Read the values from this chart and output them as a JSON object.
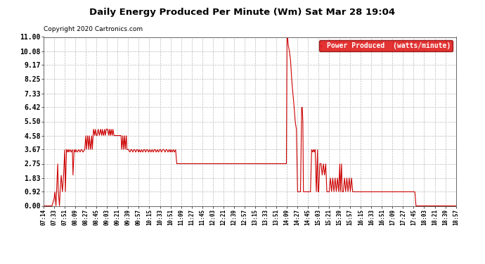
{
  "title": "Daily Energy Produced Per Minute (Wm) Sat Mar 28 19:04",
  "copyright": "Copyright 2020 Cartronics.com",
  "legend_label": "Power Produced  (watts/minute)",
  "legend_bg": "#dd0000",
  "legend_text_color": "#ffffff",
  "line_color": "#cc0000",
  "background_color": "#ffffff",
  "grid_color": "#bbbbbb",
  "yticks": [
    0.0,
    0.92,
    1.83,
    2.75,
    3.67,
    4.58,
    5.5,
    6.42,
    7.33,
    8.25,
    9.17,
    10.08,
    11.0
  ],
  "ylim": [
    0.0,
    11.0
  ],
  "xtick_labels": [
    "07:14",
    "07:33",
    "07:51",
    "08:09",
    "08:27",
    "08:45",
    "09:03",
    "09:21",
    "09:39",
    "09:57",
    "10:15",
    "10:33",
    "10:51",
    "11:09",
    "11:27",
    "11:45",
    "12:03",
    "12:21",
    "12:39",
    "12:57",
    "13:15",
    "13:33",
    "13:51",
    "14:09",
    "14:27",
    "14:45",
    "15:03",
    "15:21",
    "15:39",
    "15:57",
    "16:15",
    "16:33",
    "16:51",
    "17:09",
    "17:27",
    "17:45",
    "18:03",
    "18:21",
    "18:39",
    "18:57"
  ],
  "data": [
    [
      0,
      0.0
    ],
    [
      5,
      0.0
    ],
    [
      10,
      0.0
    ],
    [
      14,
      0.0
    ],
    [
      15,
      0.1
    ],
    [
      18,
      0.5
    ],
    [
      19,
      0.92
    ],
    [
      21,
      0.0
    ],
    [
      22,
      0.92
    ],
    [
      24,
      2.75
    ],
    [
      25,
      0.92
    ],
    [
      27,
      0.0
    ],
    [
      28,
      0.92
    ],
    [
      30,
      2.0
    ],
    [
      32,
      0.92
    ],
    [
      34,
      2.0
    ],
    [
      36,
      3.67
    ],
    [
      37,
      0.92
    ],
    [
      39,
      3.67
    ],
    [
      40,
      3.5
    ],
    [
      42,
      3.67
    ],
    [
      43,
      3.5
    ],
    [
      45,
      3.67
    ],
    [
      47,
      3.5
    ],
    [
      49,
      3.67
    ],
    [
      50,
      2.0
    ],
    [
      52,
      3.67
    ],
    [
      54,
      3.5
    ],
    [
      55,
      3.67
    ],
    [
      57,
      3.5
    ],
    [
      60,
      3.67
    ],
    [
      62,
      3.5
    ],
    [
      64,
      3.67
    ],
    [
      65,
      3.67
    ],
    [
      67,
      3.5
    ],
    [
      70,
      3.67
    ],
    [
      72,
      4.58
    ],
    [
      73,
      3.67
    ],
    [
      75,
      4.58
    ],
    [
      77,
      3.67
    ],
    [
      78,
      4.58
    ],
    [
      80,
      3.67
    ],
    [
      82,
      4.58
    ],
    [
      83,
      3.67
    ],
    [
      85,
      5.0
    ],
    [
      87,
      4.58
    ],
    [
      88,
      5.0
    ],
    [
      90,
      4.58
    ],
    [
      91,
      4.58
    ],
    [
      93,
      5.0
    ],
    [
      95,
      4.58
    ],
    [
      97,
      5.0
    ],
    [
      99,
      4.58
    ],
    [
      100,
      5.0
    ],
    [
      102,
      4.58
    ],
    [
      104,
      5.0
    ],
    [
      105,
      4.58
    ],
    [
      107,
      5.0
    ],
    [
      109,
      5.0
    ],
    [
      111,
      4.58
    ],
    [
      112,
      5.0
    ],
    [
      114,
      4.58
    ],
    [
      115,
      5.0
    ],
    [
      117,
      4.58
    ],
    [
      118,
      5.0
    ],
    [
      120,
      4.58
    ],
    [
      121,
      4.58
    ],
    [
      123,
      4.58
    ],
    [
      124,
      4.58
    ],
    [
      125,
      4.58
    ],
    [
      127,
      4.58
    ],
    [
      129,
      4.58
    ],
    [
      130,
      4.58
    ],
    [
      132,
      4.58
    ],
    [
      133,
      3.67
    ],
    [
      135,
      4.58
    ],
    [
      136,
      3.67
    ],
    [
      138,
      4.58
    ],
    [
      139,
      3.67
    ],
    [
      141,
      4.58
    ],
    [
      142,
      3.67
    ],
    [
      144,
      3.67
    ],
    [
      145,
      3.67
    ],
    [
      147,
      3.5
    ],
    [
      149,
      3.67
    ],
    [
      150,
      3.67
    ],
    [
      152,
      3.5
    ],
    [
      154,
      3.67
    ],
    [
      155,
      3.67
    ],
    [
      157,
      3.5
    ],
    [
      159,
      3.67
    ],
    [
      160,
      3.67
    ],
    [
      162,
      3.5
    ],
    [
      163,
      3.67
    ],
    [
      165,
      3.5
    ],
    [
      167,
      3.67
    ],
    [
      169,
      3.5
    ],
    [
      171,
      3.67
    ],
    [
      172,
      3.67
    ],
    [
      174,
      3.5
    ],
    [
      176,
      3.67
    ],
    [
      177,
      3.67
    ],
    [
      179,
      3.5
    ],
    [
      181,
      3.67
    ],
    [
      183,
      3.5
    ],
    [
      185,
      3.67
    ],
    [
      187,
      3.5
    ],
    [
      189,
      3.67
    ],
    [
      190,
      3.67
    ],
    [
      192,
      3.5
    ],
    [
      194,
      3.67
    ],
    [
      196,
      3.5
    ],
    [
      198,
      3.67
    ],
    [
      199,
      3.67
    ],
    [
      201,
      3.5
    ],
    [
      203,
      3.67
    ],
    [
      205,
      3.67
    ],
    [
      207,
      3.5
    ],
    [
      209,
      3.67
    ],
    [
      210,
      3.67
    ],
    [
      212,
      3.5
    ],
    [
      214,
      3.67
    ],
    [
      216,
      3.5
    ],
    [
      217,
      3.67
    ],
    [
      219,
      3.5
    ],
    [
      221,
      3.67
    ],
    [
      223,
      3.5
    ],
    [
      225,
      3.67
    ],
    [
      227,
      2.75
    ],
    [
      228,
      2.75
    ],
    [
      229,
      2.75
    ],
    [
      230,
      2.75
    ],
    [
      232,
      2.75
    ],
    [
      234,
      2.75
    ],
    [
      235,
      2.75
    ],
    [
      237,
      2.75
    ],
    [
      239,
      2.75
    ],
    [
      240,
      2.75
    ],
    [
      242,
      2.75
    ],
    [
      244,
      2.75
    ],
    [
      246,
      2.75
    ],
    [
      248,
      2.75
    ],
    [
      249,
      2.75
    ],
    [
      250,
      2.75
    ],
    [
      252,
      2.75
    ],
    [
      253,
      2.75
    ],
    [
      255,
      2.75
    ],
    [
      257,
      2.75
    ],
    [
      258,
      2.75
    ],
    [
      260,
      2.75
    ],
    [
      262,
      2.75
    ],
    [
      263,
      2.75
    ],
    [
      265,
      2.75
    ],
    [
      267,
      2.75
    ],
    [
      268,
      2.75
    ],
    [
      270,
      2.75
    ],
    [
      271,
      2.75
    ],
    [
      273,
      2.75
    ],
    [
      275,
      2.75
    ],
    [
      277,
      2.75
    ],
    [
      279,
      2.75
    ],
    [
      280,
      2.75
    ],
    [
      282,
      2.75
    ],
    [
      284,
      2.75
    ],
    [
      285,
      2.75
    ],
    [
      287,
      2.75
    ],
    [
      289,
      2.75
    ],
    [
      291,
      2.75
    ],
    [
      293,
      2.75
    ],
    [
      295,
      2.75
    ],
    [
      297,
      2.75
    ],
    [
      299,
      2.75
    ],
    [
      300,
      2.75
    ],
    [
      302,
      2.75
    ],
    [
      304,
      2.75
    ],
    [
      305,
      2.75
    ],
    [
      307,
      2.75
    ],
    [
      309,
      2.75
    ],
    [
      311,
      2.75
    ],
    [
      312,
      2.75
    ],
    [
      314,
      2.75
    ],
    [
      316,
      2.75
    ],
    [
      317,
      2.75
    ],
    [
      319,
      2.75
    ],
    [
      320,
      2.75
    ],
    [
      322,
      2.75
    ],
    [
      324,
      2.75
    ],
    [
      325,
      2.75
    ],
    [
      327,
      2.75
    ],
    [
      329,
      2.75
    ],
    [
      330,
      2.75
    ],
    [
      332,
      2.75
    ],
    [
      334,
      2.75
    ],
    [
      335,
      2.75
    ],
    [
      337,
      2.75
    ],
    [
      339,
      2.75
    ],
    [
      340,
      2.75
    ],
    [
      342,
      2.75
    ],
    [
      343,
      2.75
    ],
    [
      345,
      2.75
    ],
    [
      347,
      2.75
    ],
    [
      348,
      2.75
    ],
    [
      350,
      2.75
    ],
    [
      352,
      2.75
    ],
    [
      354,
      2.75
    ],
    [
      355,
      2.75
    ],
    [
      357,
      2.75
    ],
    [
      359,
      2.75
    ],
    [
      360,
      2.75
    ],
    [
      362,
      2.75
    ],
    [
      364,
      2.75
    ],
    [
      365,
      2.75
    ],
    [
      367,
      2.75
    ],
    [
      369,
      2.75
    ],
    [
      370,
      2.75
    ],
    [
      372,
      2.75
    ],
    [
      374,
      2.75
    ],
    [
      375,
      2.75
    ],
    [
      377,
      2.75
    ],
    [
      379,
      2.75
    ],
    [
      381,
      2.75
    ],
    [
      383,
      2.75
    ],
    [
      385,
      2.75
    ],
    [
      387,
      2.75
    ],
    [
      388,
      2.75
    ],
    [
      390,
      2.75
    ],
    [
      392,
      2.75
    ],
    [
      393,
      2.75
    ],
    [
      395,
      2.75
    ],
    [
      397,
      2.75
    ],
    [
      399,
      2.75
    ],
    [
      401,
      2.75
    ],
    [
      403,
      2.75
    ],
    [
      404,
      2.75
    ],
    [
      406,
      2.75
    ],
    [
      408,
      2.75
    ],
    [
      410,
      2.75
    ],
    [
      411,
      2.75
    ],
    [
      413,
      2.75
    ],
    [
      414,
      2.75
    ],
    [
      415,
      11.0
    ],
    [
      416,
      11.0
    ],
    [
      417,
      10.5
    ],
    [
      419,
      10.08
    ],
    [
      421,
      9.5
    ],
    [
      423,
      8.25
    ],
    [
      425,
      7.33
    ],
    [
      427,
      6.5
    ],
    [
      429,
      5.5
    ],
    [
      431,
      5.0
    ],
    [
      433,
      0.92
    ],
    [
      434,
      0.92
    ],
    [
      436,
      0.92
    ],
    [
      438,
      0.92
    ],
    [
      440,
      6.42
    ],
    [
      441,
      6.42
    ],
    [
      442,
      5.5
    ],
    [
      443,
      0.92
    ],
    [
      444,
      0.92
    ],
    [
      445,
      0.92
    ],
    [
      447,
      0.92
    ],
    [
      449,
      0.92
    ],
    [
      451,
      0.92
    ],
    [
      453,
      0.92
    ],
    [
      455,
      0.92
    ],
    [
      457,
      3.67
    ],
    [
      459,
      3.5
    ],
    [
      460,
      3.67
    ],
    [
      462,
      3.5
    ],
    [
      463,
      3.67
    ],
    [
      465,
      0.92
    ],
    [
      467,
      3.67
    ],
    [
      468,
      0.92
    ],
    [
      469,
      0.92
    ],
    [
      471,
      2.75
    ],
    [
      473,
      2.75
    ],
    [
      475,
      2.0
    ],
    [
      477,
      2.75
    ],
    [
      479,
      2.0
    ],
    [
      481,
      2.75
    ],
    [
      483,
      0.92
    ],
    [
      485,
      0.92
    ],
    [
      487,
      0.92
    ],
    [
      489,
      1.83
    ],
    [
      491,
      0.92
    ],
    [
      493,
      1.83
    ],
    [
      495,
      0.92
    ],
    [
      497,
      1.83
    ],
    [
      499,
      0.92
    ],
    [
      501,
      1.83
    ],
    [
      503,
      0.92
    ],
    [
      505,
      2.75
    ],
    [
      506,
      0.92
    ],
    [
      508,
      2.75
    ],
    [
      509,
      0.92
    ],
    [
      511,
      0.92
    ],
    [
      513,
      1.83
    ],
    [
      515,
      0.92
    ],
    [
      517,
      1.83
    ],
    [
      519,
      0.92
    ],
    [
      521,
      1.83
    ],
    [
      523,
      0.92
    ],
    [
      525,
      1.83
    ],
    [
      527,
      0.92
    ],
    [
      528,
      0.92
    ],
    [
      529,
      0.92
    ],
    [
      531,
      0.92
    ],
    [
      533,
      0.92
    ],
    [
      535,
      0.92
    ],
    [
      537,
      0.92
    ],
    [
      539,
      0.92
    ],
    [
      541,
      0.92
    ],
    [
      543,
      0.92
    ],
    [
      545,
      0.92
    ],
    [
      547,
      0.92
    ],
    [
      549,
      0.92
    ],
    [
      551,
      0.92
    ],
    [
      553,
      0.92
    ],
    [
      555,
      0.92
    ],
    [
      557,
      0.92
    ],
    [
      559,
      0.92
    ],
    [
      561,
      0.92
    ],
    [
      563,
      0.92
    ],
    [
      565,
      0.92
    ],
    [
      567,
      0.92
    ],
    [
      569,
      0.92
    ],
    [
      571,
      0.92
    ],
    [
      573,
      0.92
    ],
    [
      575,
      0.92
    ],
    [
      577,
      0.92
    ],
    [
      579,
      0.92
    ],
    [
      581,
      0.92
    ],
    [
      583,
      0.92
    ],
    [
      585,
      0.92
    ],
    [
      587,
      0.92
    ],
    [
      589,
      0.92
    ],
    [
      591,
      0.92
    ],
    [
      593,
      0.92
    ],
    [
      595,
      0.92
    ],
    [
      597,
      0.92
    ],
    [
      599,
      0.92
    ],
    [
      601,
      0.92
    ],
    [
      603,
      0.92
    ],
    [
      605,
      0.92
    ],
    [
      607,
      0.92
    ],
    [
      609,
      0.92
    ],
    [
      611,
      0.92
    ],
    [
      613,
      0.92
    ],
    [
      615,
      0.92
    ],
    [
      617,
      0.92
    ],
    [
      619,
      0.92
    ],
    [
      621,
      0.92
    ],
    [
      623,
      0.92
    ],
    [
      625,
      0.92
    ],
    [
      627,
      0.92
    ],
    [
      629,
      0.92
    ],
    [
      631,
      0.92
    ],
    [
      633,
      0.92
    ],
    [
      635,
      0.0
    ],
    [
      637,
      0.0
    ],
    [
      639,
      0.0
    ],
    [
      641,
      0.0
    ],
    [
      643,
      0.0
    ],
    [
      645,
      0.0
    ],
    [
      647,
      0.0
    ],
    [
      649,
      0.0
    ],
    [
      651,
      0.0
    ],
    [
      653,
      0.0
    ],
    [
      655,
      0.0
    ],
    [
      657,
      0.0
    ],
    [
      659,
      0.0
    ],
    [
      661,
      0.0
    ],
    [
      663,
      0.0
    ],
    [
      665,
      0.0
    ],
    [
      667,
      0.0
    ],
    [
      669,
      0.0
    ],
    [
      671,
      0.0
    ],
    [
      673,
      0.0
    ],
    [
      675,
      0.0
    ],
    [
      677,
      0.0
    ],
    [
      679,
      0.0
    ],
    [
      681,
      0.0
    ],
    [
      683,
      0.0
    ],
    [
      685,
      0.0
    ],
    [
      687,
      0.0
    ],
    [
      689,
      0.0
    ],
    [
      691,
      0.0
    ],
    [
      693,
      0.0
    ],
    [
      695,
      0.0
    ],
    [
      697,
      0.0
    ],
    [
      699,
      0.0
    ],
    [
      701,
      0.0
    ],
    [
      703,
      0.0
    ]
  ]
}
